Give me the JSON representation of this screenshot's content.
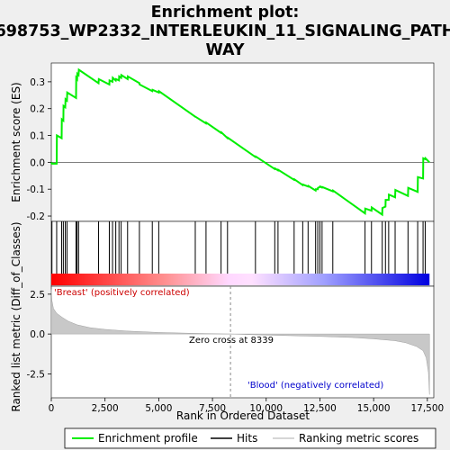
{
  "chart_data": {
    "type": "line",
    "title_lines": [
      "Enrichment plot:",
      "698753_WP2332_INTERLEUKIN_11_SIGNALING_PATH",
      "WAY"
    ],
    "xlabel": "Rank in Ordered Dataset",
    "ylabel_top": "Enrichment score (ES)",
    "ylabel_bottom": "Ranked list metric (Diff_of_Classes)",
    "xlim": [
      0,
      17800
    ],
    "ylim_top": [
      -0.22,
      0.37
    ],
    "ylim_bottom": [
      -4.0,
      3.0
    ],
    "x_ticks": [
      0,
      2500,
      5000,
      7500,
      10000,
      12500,
      15000,
      17500
    ],
    "x_tick_labels": [
      "0",
      "2,500",
      "5,000",
      "7,500",
      "10,000",
      "12,500",
      "15,000",
      "17,500"
    ],
    "y_ticks_top": [
      0.3,
      0.2,
      0.1,
      0.0,
      -0.1,
      -0.2
    ],
    "y_tick_labels_top": [
      "0.3",
      "0.2",
      "0.1",
      "0.0",
      "-0.1",
      "-0.2"
    ],
    "y_ticks_bottom": [
      2.5,
      0.0,
      -2.5
    ],
    "y_tick_labels_bottom": [
      "2.5",
      "0.0",
      "-2.5"
    ],
    "n_genes": 17600,
    "zero_cross": 8339,
    "annotations": {
      "positive_label": "'Breast' (positively correlated)",
      "negative_label": "'Blood' (negatively correlated)",
      "zero_cross_label": "Zero cross at 8339"
    },
    "hits": [
      30,
      250,
      480,
      560,
      650,
      730,
      1150,
      1200,
      1270,
      2200,
      2700,
      2850,
      3000,
      3150,
      3250,
      3550,
      4100,
      4700,
      5000,
      6700,
      7200,
      7900,
      8200,
      9500,
      10400,
      10550,
      11300,
      11700,
      11950,
      12300,
      12400,
      12500,
      12600,
      13100,
      14600,
      14900,
      15400,
      15550,
      15700,
      16000,
      16600,
      17050,
      17300,
      17400
    ],
    "es_curve": [
      [
        0,
        0.0
      ],
      [
        30,
        -0.005
      ],
      [
        250,
        -0.005
      ],
      [
        260,
        0.1
      ],
      [
        480,
        0.09
      ],
      [
        490,
        0.16
      ],
      [
        560,
        0.155
      ],
      [
        570,
        0.21
      ],
      [
        650,
        0.205
      ],
      [
        660,
        0.235
      ],
      [
        730,
        0.23
      ],
      [
        740,
        0.26
      ],
      [
        1150,
        0.24
      ],
      [
        1160,
        0.315
      ],
      [
        1200,
        0.31
      ],
      [
        1210,
        0.33
      ],
      [
        1270,
        0.325
      ],
      [
        1280,
        0.345
      ],
      [
        2200,
        0.295
      ],
      [
        2210,
        0.31
      ],
      [
        2700,
        0.29
      ],
      [
        2710,
        0.305
      ],
      [
        2850,
        0.3
      ],
      [
        2860,
        0.315
      ],
      [
        3000,
        0.305
      ],
      [
        3010,
        0.31
      ],
      [
        3150,
        0.305
      ],
      [
        3160,
        0.32
      ],
      [
        3250,
        0.315
      ],
      [
        3260,
        0.325
      ],
      [
        3550,
        0.31
      ],
      [
        3560,
        0.32
      ],
      [
        4100,
        0.295
      ],
      [
        4110,
        0.29
      ],
      [
        4700,
        0.265
      ],
      [
        4710,
        0.27
      ],
      [
        5000,
        0.26
      ],
      [
        5010,
        0.265
      ],
      [
        6700,
        0.17
      ],
      [
        6710,
        0.17
      ],
      [
        7200,
        0.145
      ],
      [
        7210,
        0.148
      ],
      [
        7900,
        0.11
      ],
      [
        7910,
        0.112
      ],
      [
        8200,
        0.09
      ],
      [
        8210,
        0.092
      ],
      [
        9500,
        0.02
      ],
      [
        9510,
        0.022
      ],
      [
        10400,
        -0.025
      ],
      [
        10410,
        -0.023
      ],
      [
        10550,
        -0.03
      ],
      [
        10560,
        -0.028
      ],
      [
        11300,
        -0.065
      ],
      [
        11310,
        -0.063
      ],
      [
        11700,
        -0.085
      ],
      [
        11710,
        -0.083
      ],
      [
        11950,
        -0.09
      ],
      [
        11960,
        -0.088
      ],
      [
        12300,
        -0.105
      ],
      [
        12310,
        -0.1
      ],
      [
        12400,
        -0.1
      ],
      [
        12410,
        -0.095
      ],
      [
        12500,
        -0.092
      ],
      [
        12510,
        -0.09
      ],
      [
        12600,
        -0.094
      ],
      [
        12610,
        -0.092
      ],
      [
        13100,
        -0.108
      ],
      [
        13110,
        -0.105
      ],
      [
        14600,
        -0.19
      ],
      [
        14610,
        -0.172
      ],
      [
        14900,
        -0.18
      ],
      [
        14910,
        -0.168
      ],
      [
        15400,
        -0.195
      ],
      [
        15410,
        -0.17
      ],
      [
        15550,
        -0.165
      ],
      [
        15560,
        -0.14
      ],
      [
        15700,
        -0.14
      ],
      [
        15710,
        -0.12
      ],
      [
        16000,
        -0.13
      ],
      [
        16010,
        -0.103
      ],
      [
        16600,
        -0.125
      ],
      [
        16610,
        -0.095
      ],
      [
        17050,
        -0.11
      ],
      [
        17060,
        -0.055
      ],
      [
        17300,
        -0.06
      ],
      [
        17310,
        0.015
      ],
      [
        17400,
        0.012
      ],
      [
        17410,
        0.015
      ],
      [
        17600,
        0.0
      ]
    ],
    "metric_curve": [
      [
        0,
        2.8
      ],
      [
        30,
        2.1
      ],
      [
        100,
        1.6
      ],
      [
        250,
        1.3
      ],
      [
        500,
        1.05
      ],
      [
        800,
        0.8
      ],
      [
        1200,
        0.58
      ],
      [
        1800,
        0.4
      ],
      [
        2500,
        0.29
      ],
      [
        3500,
        0.19
      ],
      [
        5000,
        0.1
      ],
      [
        6500,
        0.05
      ],
      [
        8000,
        0.01
      ],
      [
        8339,
        0.0
      ],
      [
        9500,
        -0.05
      ],
      [
        11000,
        -0.1
      ],
      [
        12500,
        -0.15
      ],
      [
        14000,
        -0.22
      ],
      [
        15000,
        -0.3
      ],
      [
        16000,
        -0.42
      ],
      [
        16500,
        -0.55
      ],
      [
        17000,
        -0.78
      ],
      [
        17300,
        -1.05
      ],
      [
        17450,
        -1.5
      ],
      [
        17550,
        -2.4
      ],
      [
        17600,
        -3.8
      ]
    ],
    "legend": {
      "items": [
        "Enrichment profile",
        "Hits",
        "Ranking metric scores"
      ]
    },
    "colors": {
      "es_line": "#00ee00",
      "hit": "#000000",
      "metric_fill": "#c8c8c8",
      "positive_label": "#cc0000",
      "negative_label": "#0000cc",
      "zero_line": "#888888"
    }
  }
}
